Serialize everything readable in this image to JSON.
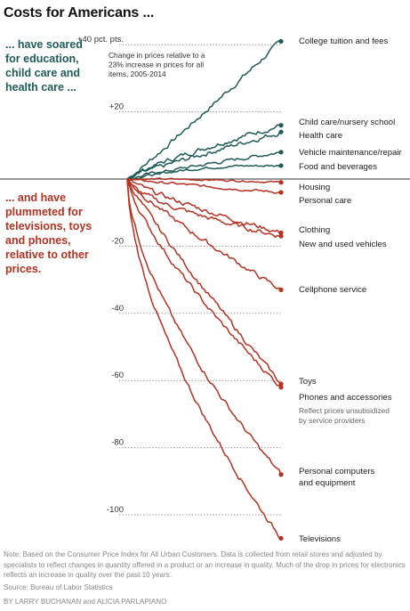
{
  "title": "Costs for Americans ...",
  "annotation_up": "... have soared for education, child care and health care ...",
  "annotation_down": "... and have plummeted for televisions, toys and phones, relative to other prices.",
  "colors": {
    "up": "#1f5c58",
    "down": "#b53222",
    "baseline": "#5a5a5a",
    "grid": "#888888"
  },
  "chart_data": {
    "type": "line",
    "title": "Change in prices relative to a 23% increase in prices for all items, 2005-2014",
    "x": [
      2005,
      2014
    ],
    "ylim": [
      -105,
      42
    ],
    "yticks": [
      40,
      20,
      -20,
      -40,
      -60,
      -80,
      -100
    ],
    "ytick_labels": [
      "+40 pct. pts.",
      "+20",
      "-20",
      "-40",
      "-60",
      "-80",
      "-100"
    ],
    "grid": "dotted horizontal",
    "series": [
      {
        "name": "College tuition and fees",
        "group": "up",
        "final": 41
      },
      {
        "name": "Child care/nursery school",
        "group": "up",
        "final": 16
      },
      {
        "name": "Health care",
        "group": "up",
        "final": 14
      },
      {
        "name": "Vehicle maintenance/repair",
        "group": "up",
        "final": 8
      },
      {
        "name": "Food and beverages",
        "group": "up",
        "final": 4
      },
      {
        "name": "Housing",
        "group": "down",
        "final": -1
      },
      {
        "name": "Personal care",
        "group": "down",
        "final": -4
      },
      {
        "name": "Clothing",
        "group": "down",
        "final": -16
      },
      {
        "name": "New and used vehicles",
        "group": "down",
        "final": -17
      },
      {
        "name": "Cellphone service",
        "group": "down",
        "final": -33
      },
      {
        "name": "Toys",
        "group": "down",
        "final": -61
      },
      {
        "name": "Phones and accessories",
        "group": "down",
        "final": -62,
        "note": "Reflect prices unsubsidized by service providers"
      },
      {
        "name": "Personal computers and equipment",
        "group": "down",
        "final": -88
      },
      {
        "name": "Televisions",
        "group": "down",
        "final": -107
      }
    ]
  },
  "note": "Note: Based on the Consumer Price Index for All Urban Customers. Data is collected from retail stores and adjusted by specialists to reflect changes in quantity offered in a product or an increase in quality. Much of the drop in prices for electronics reflects an increase in quality over the past 10 years.",
  "source": "Source: Bureau of Labor Statistics",
  "byline": {
    "authors1": "By Larry Buchanan",
    "and": "and",
    "authors2": "Alicia Parlapiano"
  }
}
